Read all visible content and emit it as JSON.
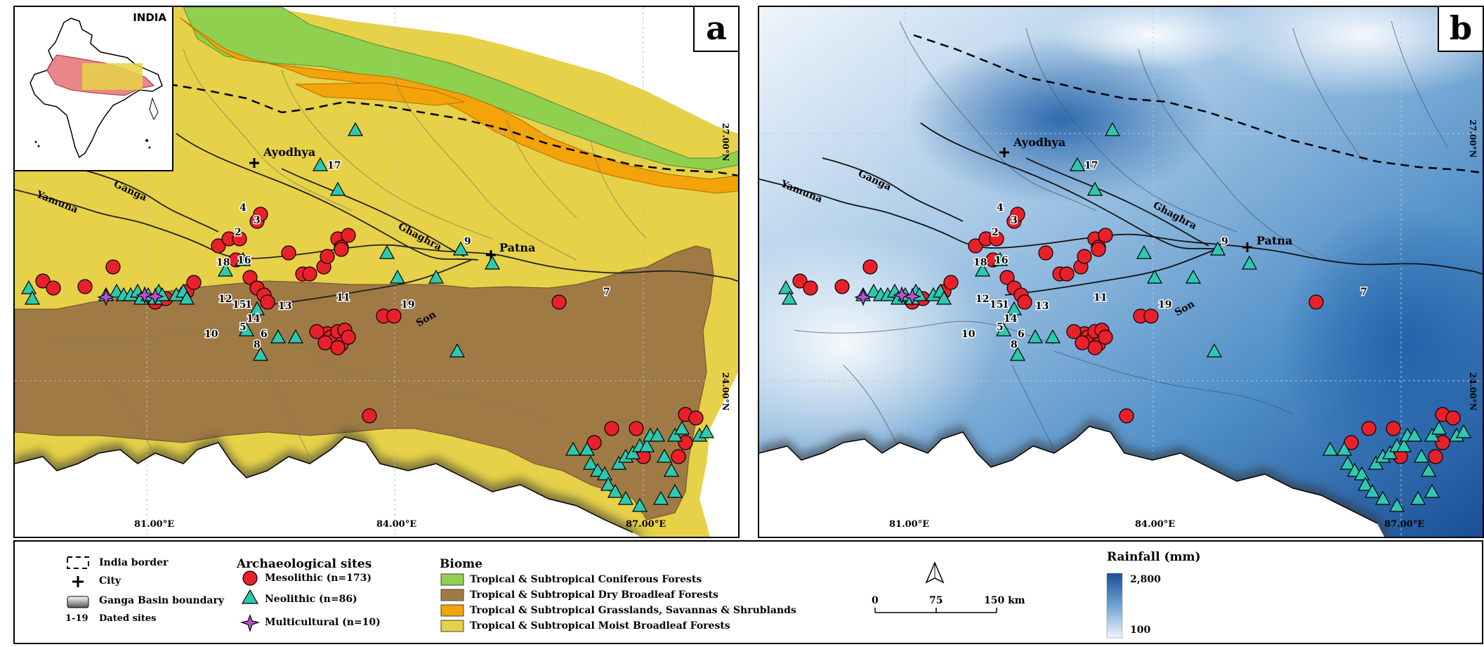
{
  "panels": [
    {
      "letter": "a"
    },
    {
      "letter": "b"
    }
  ],
  "inset": {
    "label": "INDIA"
  },
  "cities": [
    {
      "name": "Ayodhya"
    },
    {
      "name": "Patna"
    }
  ],
  "rivers": [
    {
      "name": "Yamuna"
    },
    {
      "name": "Ganga"
    },
    {
      "name": "Ghaghra"
    },
    {
      "name": "Son"
    }
  ],
  "axes": {
    "x_ticks": [
      "81.00°E",
      "84.00°E",
      "87.00°E"
    ],
    "y_ticks": [
      "27.00°N",
      "24.00°N"
    ]
  },
  "dated_sites": [
    "1",
    "2",
    "3",
    "4",
    "5",
    "6",
    "7",
    "8",
    "9",
    "10",
    "11",
    "12",
    "13",
    "14",
    "15",
    "16",
    "17",
    "18",
    "19"
  ],
  "legend": {
    "border_label": "India border",
    "city_label": "City",
    "basin_label": "Ganga Basin boundary",
    "dated_label": "Dated sites",
    "dated_prefix": "1-19",
    "sites_title": "Archaeological sites",
    "mesolithic": "Mesolithic (n=173)",
    "neolithic": "Neolithic (n=86)",
    "multicultural": "Multicultural (n=10)",
    "biome_title": "Biome",
    "biomes": [
      {
        "label": "Tropical & Subtropical Coniferous Forests",
        "color": "#8fd14f"
      },
      {
        "label": "Tropical & Subtropical Dry Broadleaf Forests",
        "color": "#a07a45"
      },
      {
        "label": "Tropical & Subtropical Grasslands, Savannas & Shrublands",
        "color": "#f5a30a"
      },
      {
        "label": "Tropical & Subtropical Moist Broadleaf Forests",
        "color": "#e6d148"
      }
    ],
    "scale": {
      "zero": "0",
      "mid": "75",
      "end": "150 km"
    },
    "rainfall_title": "Rainfall (mm)",
    "rainfall_max": "2,800",
    "rainfall_min": "100"
  },
  "colors": {
    "mesolithic": "#e8202a",
    "neolithic": "#2ec8b0",
    "multicultural": "#c24bd4",
    "rain_high": "#1a4f97",
    "rain_low": "#eef5fb"
  }
}
